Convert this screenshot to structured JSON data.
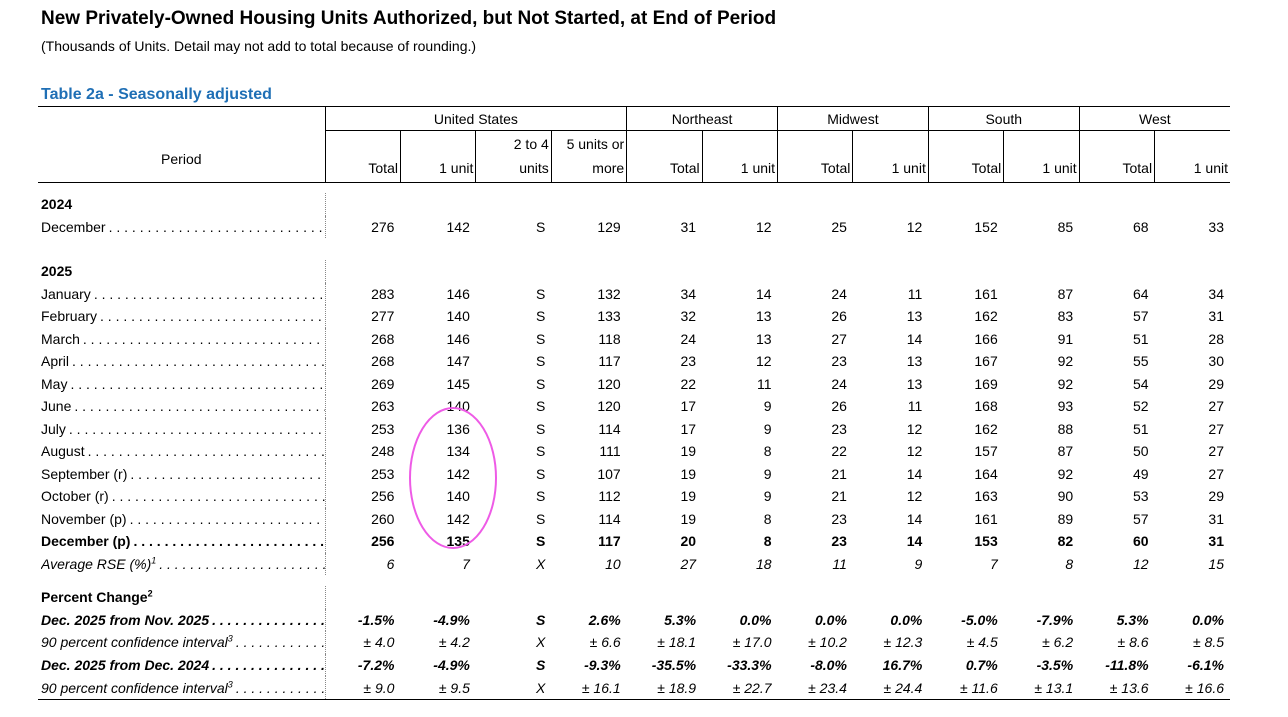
{
  "title": "New Privately-Owned Housing Units Authorized, but Not Started, at End of Period",
  "subtitle": "(Thousands of Units.  Detail may not add to total because of rounding.)",
  "table_title": "Table 2a - Seasonally adjusted",
  "table": {
    "period_header": "Period",
    "groups": [
      "United States",
      "Northeast",
      "Midwest",
      "South",
      "West"
    ],
    "columns": [
      "Total",
      "1 unit",
      "2 to 4 units",
      "5 units or more",
      "Total",
      "1 unit",
      "Total",
      "1 unit",
      "Total",
      "1 unit",
      "Total",
      "1 unit"
    ],
    "sections": [
      {
        "heading": "2024",
        "rows": [
          {
            "label": "December",
            "values": [
              276,
              142,
              "S",
              129,
              31,
              12,
              25,
              12,
              152,
              85,
              68,
              33
            ]
          }
        ]
      },
      {
        "heading": "2025",
        "rows": [
          {
            "label": "January",
            "values": [
              283,
              146,
              "S",
              132,
              34,
              14,
              24,
              11,
              161,
              87,
              64,
              34
            ]
          },
          {
            "label": "February",
            "values": [
              277,
              140,
              "S",
              133,
              32,
              13,
              26,
              13,
              162,
              83,
              57,
              31
            ]
          },
          {
            "label": "March",
            "values": [
              268,
              146,
              "S",
              118,
              24,
              13,
              27,
              14,
              166,
              91,
              51,
              28
            ]
          },
          {
            "label": "April",
            "values": [
              268,
              147,
              "S",
              117,
              23,
              12,
              23,
              13,
              167,
              92,
              55,
              30
            ]
          },
          {
            "label": "May",
            "values": [
              269,
              145,
              "S",
              120,
              22,
              11,
              24,
              13,
              169,
              92,
              54,
              29
            ]
          },
          {
            "label": "June",
            "values": [
              263,
              140,
              "S",
              120,
              17,
              9,
              26,
              11,
              168,
              93,
              52,
              27
            ]
          },
          {
            "label": "July",
            "values": [
              253,
              136,
              "S",
              114,
              17,
              9,
              23,
              12,
              162,
              88,
              51,
              27
            ]
          },
          {
            "label": "August",
            "values": [
              248,
              134,
              "S",
              111,
              19,
              8,
              22,
              12,
              157,
              87,
              50,
              27
            ]
          },
          {
            "label": "September (r)",
            "values": [
              253,
              142,
              "S",
              107,
              19,
              9,
              21,
              14,
              164,
              92,
              49,
              27
            ]
          },
          {
            "label": "October (r)",
            "values": [
              256,
              140,
              "S",
              112,
              19,
              9,
              21,
              12,
              163,
              90,
              53,
              29
            ]
          },
          {
            "label": "November (p)",
            "values": [
              260,
              142,
              "S",
              114,
              19,
              8,
              23,
              14,
              161,
              89,
              57,
              31
            ]
          },
          {
            "label": "December (p)",
            "values": [
              256,
              135,
              "S",
              117,
              20,
              8,
              23,
              14,
              153,
              82,
              60,
              31
            ]
          },
          {
            "label": "Average RSE (%)",
            "note": "1",
            "values": [
              6,
              7,
              "X",
              10,
              27,
              18,
              11,
              9,
              7,
              8,
              12,
              15
            ]
          }
        ]
      },
      {
        "heading": "Percent Change",
        "heading_note": "2",
        "rows": [
          {
            "label": "Dec. 2025 from Nov. 2025",
            "values": [
              "-1.5%",
              "-4.9%",
              "S",
              "2.6%",
              "5.3%",
              "0.0%",
              "0.0%",
              "0.0%",
              "-5.0%",
              "-7.9%",
              "5.3%",
              "0.0%"
            ]
          },
          {
            "label": "90 percent confidence interval",
            "note": "3",
            "values": [
              "± 4.0",
              "± 4.2",
              "X",
              "± 6.6",
              "± 18.1",
              "± 17.0",
              "± 10.2",
              "± 12.3",
              "± 4.5",
              "± 6.2",
              "± 8.6",
              "± 8.5"
            ]
          },
          {
            "label": "Dec. 2025 from Dec. 2024",
            "values": [
              "-7.2%",
              "-4.9%",
              "S",
              "-9.3%",
              "-35.5%",
              "-33.3%",
              "-8.0%",
              "16.7%",
              "0.7%",
              "-3.5%",
              "-11.8%",
              "-6.1%"
            ]
          },
          {
            "label": "90 percent confidence interval",
            "note": "3",
            "values": [
              "± 9.0",
              "± 9.5",
              "X",
              "± 16.1",
              "± 18.9",
              "± 22.7",
              "± 23.4",
              "± 24.4",
              "± 11.6",
              "± 13.1",
              "± 13.6",
              "± 16.6"
            ]
          }
        ]
      }
    ]
  }
}
